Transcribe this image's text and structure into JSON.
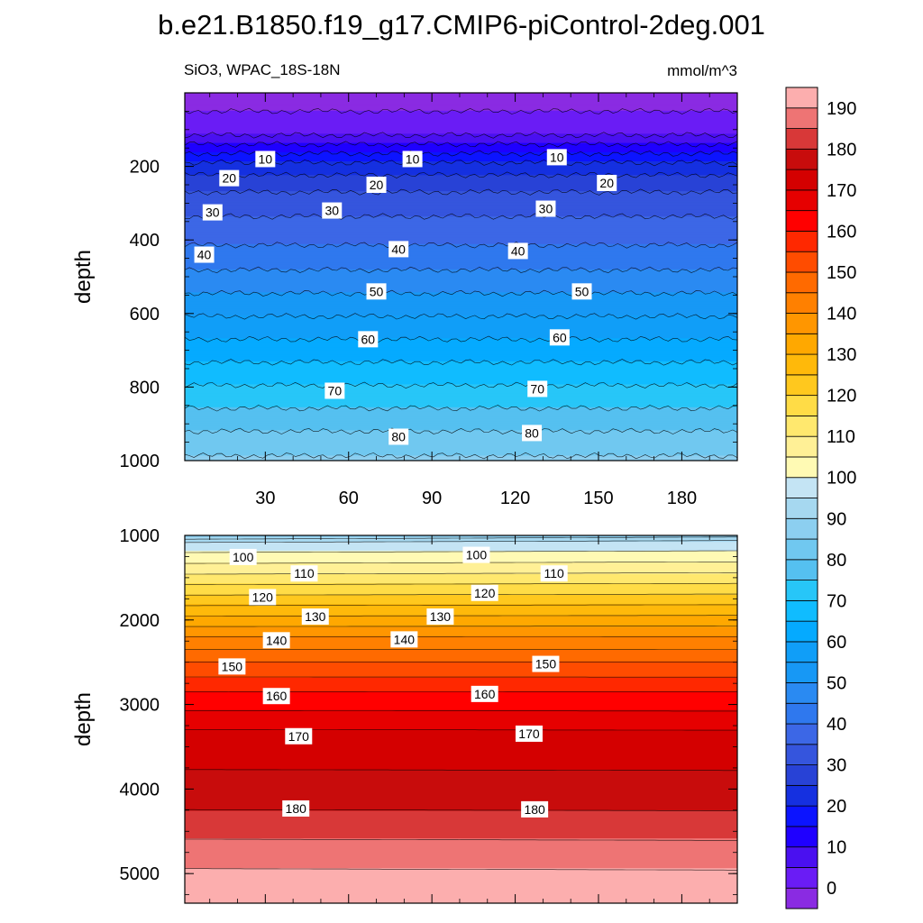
{
  "chart_data": {
    "type": "heatmap",
    "title": "b.e21.B1850.f19_g17.CMIP6-piControl-2deg.001",
    "subtitle_left": "SiO3, WPAC_18S-18N",
    "subtitle_right": "mmol/m^3",
    "colorbar": {
      "levels": [
        0,
        5,
        10,
        15,
        20,
        25,
        30,
        35,
        40,
        45,
        50,
        55,
        60,
        65,
        70,
        75,
        80,
        85,
        90,
        95,
        100,
        105,
        110,
        115,
        120,
        125,
        130,
        135,
        140,
        145,
        150,
        155,
        160,
        165,
        170,
        175,
        180,
        185,
        190
      ],
      "tick_labels": [
        "0",
        "10",
        "20",
        "30",
        "40",
        "50",
        "60",
        "70",
        "80",
        "90",
        "100",
        "110",
        "120",
        "130",
        "140",
        "150",
        "160",
        "170",
        "180",
        "190"
      ],
      "tick_values": [
        0,
        10,
        20,
        30,
        40,
        50,
        60,
        70,
        80,
        90,
        100,
        110,
        120,
        130,
        140,
        150,
        160,
        170,
        180,
        190
      ],
      "colors": [
        "#8a2be2",
        "#6a1cf5",
        "#4a10f0",
        "#1f00ff",
        "#0c14ff",
        "#1530e0",
        "#2842d6",
        "#3555dd",
        "#3c67e6",
        "#2f78ee",
        "#2a8af2",
        "#1798f5",
        "#109ef8",
        "#05aaff",
        "#10bcff",
        "#27c6f8",
        "#55c0f0",
        "#70c8f0",
        "#8ccff0",
        "#a6d8f0",
        "#c4e4f4",
        "#fffab4",
        "#fff096",
        "#ffe86e",
        "#ffdc46",
        "#ffc81e",
        "#ffb90a",
        "#ffa800",
        "#ff9600",
        "#ff8000",
        "#ff6a00",
        "#ff4c00",
        "#ff2800",
        "#ff0000",
        "#e60000",
        "#d40000",
        "#c80c0c",
        "#d83838",
        "#ee7474",
        "#fcaeae"
      ]
    },
    "panels": [
      {
        "name": "upper",
        "ylabel": "depth",
        "ylim": [
          0,
          1000
        ],
        "y_reversed": true,
        "xlim": [
          1,
          200
        ],
        "xticks": [
          "30",
          "60",
          "90",
          "120",
          "150",
          "180"
        ],
        "xtick_values": [
          30,
          60,
          90,
          120,
          150,
          180
        ],
        "yticks": [
          "200",
          "400",
          "600",
          "800",
          "1000"
        ],
        "ytick_values": [
          200,
          400,
          600,
          800,
          1000
        ],
        "contour_labels": [
          {
            "text": "10",
            "x": 30,
            "z": 180
          },
          {
            "text": "10",
            "x": 83,
            "z": 180
          },
          {
            "text": "10",
            "x": 135,
            "z": 175
          },
          {
            "text": "20",
            "x": 17,
            "z": 232
          },
          {
            "text": "20",
            "x": 70,
            "z": 250
          },
          {
            "text": "20",
            "x": 153,
            "z": 245
          },
          {
            "text": "30",
            "x": 11,
            "z": 325
          },
          {
            "text": "30",
            "x": 54,
            "z": 320
          },
          {
            "text": "30",
            "x": 131,
            "z": 315
          },
          {
            "text": "40",
            "x": 8,
            "z": 440
          },
          {
            "text": "40",
            "x": 78,
            "z": 425
          },
          {
            "text": "40",
            "x": 121,
            "z": 430
          },
          {
            "text": "50",
            "x": 70,
            "z": 540
          },
          {
            "text": "50",
            "x": 144,
            "z": 540
          },
          {
            "text": "60",
            "x": 67,
            "z": 670
          },
          {
            "text": "60",
            "x": 136,
            "z": 665
          },
          {
            "text": "70",
            "x": 55,
            "z": 810
          },
          {
            "text": "70",
            "x": 128,
            "z": 805
          },
          {
            "text": "80",
            "x": 78,
            "z": 935
          },
          {
            "text": "80",
            "x": 126,
            "z": 925
          }
        ]
      },
      {
        "name": "lower",
        "ylabel": "depth",
        "ylim": [
          1000,
          5350
        ],
        "y_reversed": true,
        "xlim": [
          1,
          200
        ],
        "yticks": [
          "1000",
          "2000",
          "3000",
          "4000",
          "5000"
        ],
        "ytick_values": [
          1000,
          2000,
          3000,
          4000,
          5000
        ],
        "contour_labels": [
          {
            "text": "100",
            "x": 22,
            "z": 1255
          },
          {
            "text": "100",
            "x": 106,
            "z": 1230
          },
          {
            "text": "110",
            "x": 44,
            "z": 1450
          },
          {
            "text": "110",
            "x": 134,
            "z": 1450
          },
          {
            "text": "120",
            "x": 29,
            "z": 1730
          },
          {
            "text": "120",
            "x": 109,
            "z": 1680
          },
          {
            "text": "130",
            "x": 48,
            "z": 1960
          },
          {
            "text": "130",
            "x": 93,
            "z": 1960
          },
          {
            "text": "140",
            "x": 34,
            "z": 2240
          },
          {
            "text": "140",
            "x": 80,
            "z": 2230
          },
          {
            "text": "150",
            "x": 18,
            "z": 2550
          },
          {
            "text": "150",
            "x": 131,
            "z": 2520
          },
          {
            "text": "160",
            "x": 34,
            "z": 2900
          },
          {
            "text": "160",
            "x": 109,
            "z": 2875
          },
          {
            "text": "170",
            "x": 42,
            "z": 3375
          },
          {
            "text": "170",
            "x": 125,
            "z": 3345
          },
          {
            "text": "180",
            "x": 41,
            "z": 4230
          },
          {
            "text": "180",
            "x": 127,
            "z": 4240
          }
        ]
      }
    ]
  }
}
